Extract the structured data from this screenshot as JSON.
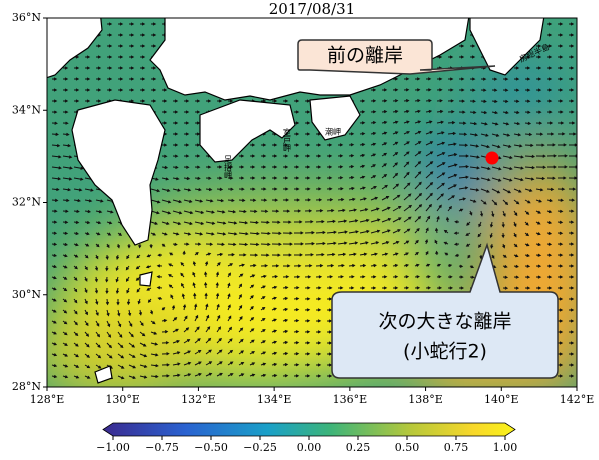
{
  "title": "2017/08/31",
  "lat_ticks": [
    {
      "value": 36,
      "label": "36°N"
    },
    {
      "value": 34,
      "label": "34°N"
    },
    {
      "value": 32,
      "label": "32°N"
    },
    {
      "value": 30,
      "label": "30°N"
    },
    {
      "value": 28,
      "label": "28°N"
    }
  ],
  "lon_ticks": [
    {
      "value": 128,
      "label": "128°E"
    },
    {
      "value": 130,
      "label": "130°E"
    },
    {
      "value": 132,
      "label": "132°E"
    },
    {
      "value": 134,
      "label": "134°E"
    },
    {
      "value": 136,
      "label": "136°E"
    },
    {
      "value": 138,
      "label": "138°E"
    },
    {
      "value": 140,
      "label": "140°E"
    },
    {
      "value": 142,
      "label": "142°E"
    }
  ],
  "colorbar": {
    "ticks": [
      {
        "value": -1,
        "label": "−1.00"
      },
      {
        "value": -0.75,
        "label": "−0.75"
      },
      {
        "value": -0.5,
        "label": "−0.50"
      },
      {
        "value": -0.25,
        "label": "−0.25"
      },
      {
        "value": 0,
        "label": "0.00"
      },
      {
        "value": 0.25,
        "label": "0.25"
      },
      {
        "value": 0.5,
        "label": "0.50"
      },
      {
        "value": 0.75,
        "label": "0.75"
      },
      {
        "value": 1,
        "label": "1.00"
      }
    ]
  },
  "places": {
    "ashizuri": "足摺岬",
    "muroto": "室戸岬",
    "shiono": "潮岬",
    "boso": "房総半島"
  },
  "callouts": {
    "previous": "前の離岸",
    "next_line1": "次の大きな離岸",
    "next_line2": "(小蛇行2)"
  }
}
